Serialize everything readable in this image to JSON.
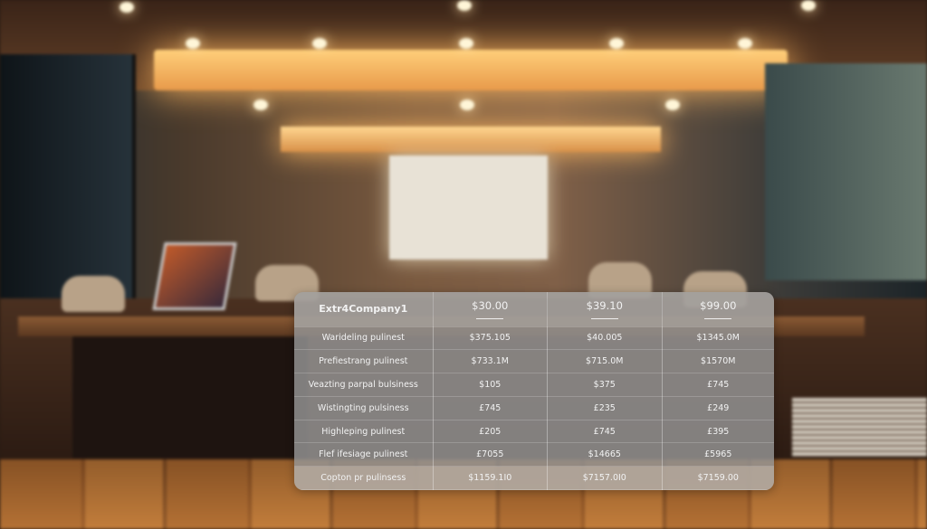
{
  "pricing_table": {
    "header": [
      "Extr4Company1",
      "$30.00",
      "$39.10",
      "$99.00"
    ],
    "rows": [
      [
        "Warideling pulinest",
        "$375.105",
        "$40.005",
        "$1345.0M"
      ],
      [
        "Prefiestrang pulinest",
        "$733.1M",
        "$715.0M",
        "$1570M"
      ],
      [
        "Veazting parpal bulsiness",
        "$105",
        "$375",
        "£745"
      ],
      [
        "Wistingting pulsiness",
        "£745",
        "£235",
        "£249"
      ],
      [
        "Highleping pulinest",
        "£205",
        "£745",
        "£395"
      ],
      [
        "Flef ifesiage pulinest",
        "£7055",
        "$14665",
        "£5965"
      ],
      [
        "Copton pr pulinsess",
        "$1159.1I0",
        "$7157.0I0",
        "$7159.00"
      ]
    ]
  }
}
